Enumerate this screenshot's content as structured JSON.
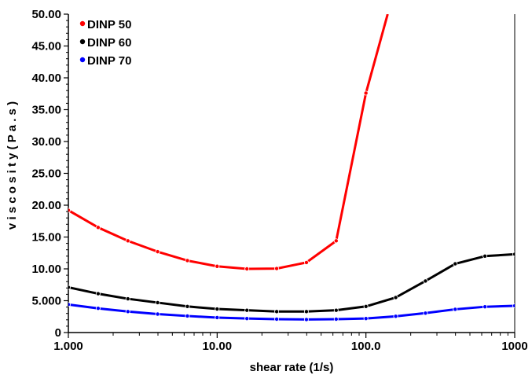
{
  "chart_data": {
    "type": "line",
    "x_scale": "log",
    "xlabel": "shear rate (1/s)",
    "ylabel": "viscosity (Pa.s)",
    "ylabel_display": "v i s c o s i t y   ( P a . s )",
    "xlim": [
      1,
      1000
    ],
    "ylim": [
      0,
      50
    ],
    "x_ticks": [
      {
        "value": 1,
        "label": "1.000"
      },
      {
        "value": 10,
        "label": "10.00"
      },
      {
        "value": 100,
        "label": "100.0"
      },
      {
        "value": 1000,
        "label": "1000"
      }
    ],
    "y_ticks": [
      {
        "value": 0,
        "label": "0"
      },
      {
        "value": 5,
        "label": "5.000"
      },
      {
        "value": 10,
        "label": "10.00"
      },
      {
        "value": 15,
        "label": "15.00"
      },
      {
        "value": 20,
        "label": "20.00"
      },
      {
        "value": 25,
        "label": "25.00"
      },
      {
        "value": 30,
        "label": "30.00"
      },
      {
        "value": 35,
        "label": "35.00"
      },
      {
        "value": 40,
        "label": "40.00"
      },
      {
        "value": 45,
        "label": "45.00"
      },
      {
        "value": 50,
        "label": "50.00"
      }
    ],
    "grid": false,
    "legend_position": "top-left",
    "series": [
      {
        "name": "DINP 50",
        "color": "#ff0000",
        "x": [
          1,
          1.585,
          2.512,
          3.981,
          6.31,
          10,
          15.85,
          25.12,
          39.81,
          63.1,
          100,
          140
        ],
        "y": [
          19.2,
          16.5,
          14.4,
          12.7,
          11.3,
          10.4,
          10.0,
          10.05,
          11.0,
          14.4,
          37.6,
          50
        ]
      },
      {
        "name": "DINP 60",
        "color": "#000000",
        "x": [
          1,
          1.585,
          2.512,
          3.981,
          6.31,
          10,
          15.85,
          25.12,
          39.81,
          63.1,
          100,
          158.5,
          251.2,
          398.1,
          631,
          1000
        ],
        "y": [
          7.1,
          6.1,
          5.3,
          4.7,
          4.1,
          3.7,
          3.5,
          3.3,
          3.3,
          3.5,
          4.1,
          5.5,
          8.1,
          10.8,
          12.0,
          12.3
        ]
      },
      {
        "name": "DINP 70",
        "color": "#0000ff",
        "x": [
          1,
          1.585,
          2.512,
          3.981,
          6.31,
          10,
          15.85,
          25.12,
          39.81,
          63.1,
          100,
          158.5,
          251.2,
          398.1,
          631,
          1000
        ],
        "y": [
          4.4,
          3.8,
          3.3,
          2.9,
          2.6,
          2.35,
          2.2,
          2.1,
          2.05,
          2.1,
          2.2,
          2.55,
          3.05,
          3.65,
          4.05,
          4.2
        ]
      }
    ]
  }
}
